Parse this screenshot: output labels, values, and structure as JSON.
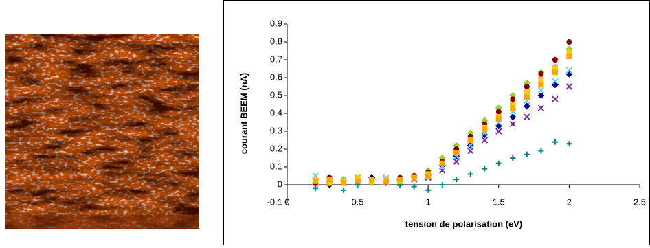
{
  "chart_data": {
    "type": "scatter",
    "x_label": "tension de polarisation (eV)",
    "y_label": "courant BEEM (nA)",
    "x": [
      0.2,
      0.3,
      0.4,
      0.5,
      0.6,
      0.7,
      0.8,
      0.9,
      1.0,
      1.1,
      1.2,
      1.3,
      1.4,
      1.5,
      1.6,
      1.7,
      1.8,
      1.9,
      2.0
    ],
    "series": [
      {
        "color": "#7030a0",
        "marker": "x",
        "values": [
          0.02,
          0.03,
          0.01,
          0.04,
          0.02,
          0.03,
          0.01,
          0.03,
          0.04,
          0.08,
          0.13,
          0.19,
          0.25,
          0.3,
          0.34,
          0.38,
          0.43,
          0.48,
          0.55
        ]
      },
      {
        "color": "#000080",
        "marker": "diamond",
        "values": [
          0.01,
          0.0,
          0.03,
          0.02,
          0.04,
          0.02,
          0.03,
          0.05,
          0.06,
          0.11,
          0.16,
          0.22,
          0.28,
          0.33,
          0.38,
          0.44,
          0.5,
          0.56,
          0.62
        ]
      },
      {
        "color": "#66ccff",
        "marker": "x",
        "values": [
          0.05,
          0.02,
          0.03,
          0.01,
          0.02,
          0.04,
          0.03,
          0.04,
          0.05,
          0.1,
          0.16,
          0.22,
          0.29,
          0.35,
          0.41,
          0.47,
          0.53,
          0.58,
          0.64
        ]
      },
      {
        "color": "#ff99cc",
        "marker": "square",
        "values": [
          0.0,
          0.02,
          0.01,
          0.03,
          0.02,
          0.01,
          0.03,
          0.04,
          0.07,
          0.12,
          0.19,
          0.26,
          0.33,
          0.39,
          0.46,
          0.52,
          0.59,
          0.66,
          0.72
        ]
      },
      {
        "color": "#99cc33",
        "marker": "diamond",
        "values": [
          0.02,
          0.01,
          0.03,
          0.02,
          0.01,
          0.03,
          0.02,
          0.05,
          0.08,
          0.15,
          0.22,
          0.29,
          0.36,
          0.43,
          0.5,
          0.57,
          0.63,
          0.7,
          0.76
        ]
      },
      {
        "color": "#800000",
        "marker": "circle",
        "values": [
          0.01,
          0.04,
          0.02,
          0.01,
          0.03,
          0.02,
          0.04,
          0.05,
          0.07,
          0.13,
          0.2,
          0.27,
          0.34,
          0.41,
          0.48,
          0.55,
          0.62,
          0.7,
          0.8
        ]
      },
      {
        "color": "#008080",
        "marker": "plus",
        "values": [
          -0.02,
          0.01,
          -0.03,
          0.0,
          0.02,
          0.01,
          0.0,
          -0.01,
          -0.03,
          0.0,
          0.03,
          0.06,
          0.09,
          0.12,
          0.15,
          0.17,
          0.19,
          0.24,
          0.23
        ]
      },
      {
        "color": "#ffcc00",
        "marker": "square",
        "values": [
          0.03,
          0.01,
          0.02,
          0.04,
          0.02,
          0.03,
          0.02,
          0.04,
          0.06,
          0.12,
          0.18,
          0.25,
          0.32,
          0.38,
          0.45,
          0.52,
          0.58,
          0.65,
          0.74
        ]
      },
      {
        "color": "#ffa500",
        "marker": "square",
        "values": [
          0.02,
          0.03,
          0.01,
          0.02,
          0.03,
          0.02,
          0.03,
          0.04,
          0.05,
          0.12,
          0.18,
          0.25,
          0.31,
          0.37,
          0.43,
          0.49,
          0.56,
          0.63,
          0.72
        ]
      }
    ],
    "xlim": [
      0,
      2.5
    ],
    "xticks": [
      0,
      0.5,
      1,
      1.5,
      2,
      2.5
    ],
    "ylim": [
      -0.1,
      0.9
    ],
    "yticks": [
      -0.1,
      0,
      0.1,
      0.2,
      0.3,
      0.4,
      0.5,
      0.6,
      0.7,
      0.8,
      0.9
    ],
    "grid": false
  }
}
